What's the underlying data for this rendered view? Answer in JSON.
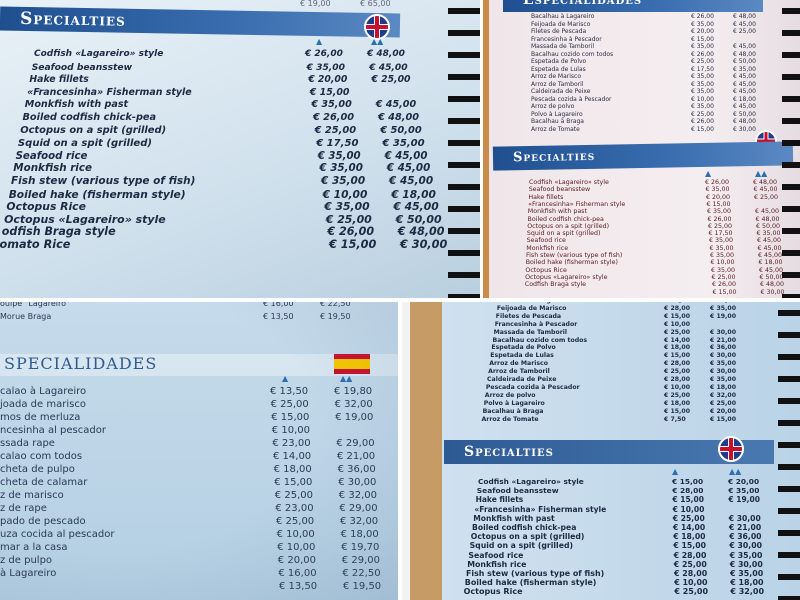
{
  "photos": [
    {
      "title": "Specialties",
      "flag": "uk",
      "top_prices": [
        "€ 19,00",
        "€ 65,00"
      ],
      "rows": [
        [
          "Codfish «Lagareiro» style",
          "€ 26,00",
          "€ 48,00"
        ],
        [
          "Seafood beansstew",
          "€ 35,00",
          "€ 45,00"
        ],
        [
          "Hake fillets",
          "€ 20,00",
          "€ 25,00"
        ],
        [
          "«Francesinha» Fisherman style",
          "€ 15,00",
          ""
        ],
        [
          "Monkfish with past",
          "€ 35,00",
          "€ 45,00"
        ],
        [
          "Boiled codfish chick-pea",
          "€ 26,00",
          "€ 48,00"
        ],
        [
          "Octopus on a spit (grilled)",
          "€ 25,00",
          "€ 50,00"
        ],
        [
          "Squid on a spit (grilled)",
          "€ 17,50",
          "€ 35,00"
        ],
        [
          "Seafood rice",
          "€ 35,00",
          "€ 45,00"
        ],
        [
          "Monkfish rice",
          "€ 35,00",
          "€ 45,00"
        ],
        [
          "Fish stew (various type of fish)",
          "€ 35,00",
          "€ 45,00"
        ],
        [
          "Boiled hake (fisherman style)",
          "€ 10,00",
          "€ 18,00"
        ],
        [
          "Octopus Rice",
          "€ 35,00",
          "€ 45,00"
        ],
        [
          "Octopus «Lagareiro» style",
          "€ 25,00",
          "€ 50,00"
        ],
        [
          "odfish Braga style",
          "€ 26,00",
          "€ 48,00"
        ],
        [
          "omato Rice",
          "€ 15,00",
          "€ 30,00"
        ]
      ]
    },
    {
      "title": "Especialidades",
      "rows": [
        [
          "Bacalhau à Lagareiro",
          "€ 26,00",
          "€ 48,00"
        ],
        [
          "Feijoada de Marisco",
          "€ 35,00",
          "€ 45,00"
        ],
        [
          "Filetes de Pescada",
          "€ 20,00",
          "€ 25,00"
        ],
        [
          "Francesinha à Pescador",
          "€ 15,00",
          ""
        ],
        [
          "Massada de Tamboril",
          "€ 35,00",
          "€ 45,00"
        ],
        [
          "Bacalhau cozido com todos",
          "€ 26,00",
          "€ 48,00"
        ],
        [
          "Espetada de Polvo",
          "€ 25,00",
          "€ 50,00"
        ],
        [
          "Espetada de Lulas",
          "€ 17,50",
          "€ 35,00"
        ],
        [
          "Arroz de Marisco",
          "€ 35,00",
          "€ 45,00"
        ],
        [
          "Arroz de Tamboril",
          "€ 35,00",
          "€ 45,00"
        ],
        [
          "Caldeirada de Peixe",
          "€ 35,00",
          "€ 45,00"
        ],
        [
          "Pescada cozida à Pescador",
          "€ 10,00",
          "€ 18,00"
        ],
        [
          "Arroz de polvo",
          "€ 35,00",
          "€ 45,00"
        ],
        [
          "Polvo à Lagareiro",
          "€ 25,00",
          "€ 50,00"
        ],
        [
          "Bacalhau à Braga",
          "€ 26,00",
          "€ 48,00"
        ],
        [
          "Arroz de Tomate",
          "€ 15,00",
          "€ 30,00"
        ]
      ],
      "title2": "Specialties",
      "flag": "uk",
      "rows2": [
        [
          "Codfish «Lagareiro» style",
          "€ 26,00",
          "€ 48,00"
        ],
        [
          "Seafood beansstew",
          "€ 35,00",
          "€ 45,00"
        ],
        [
          "Hake fillets",
          "€ 20,00",
          "€ 25,00"
        ],
        [
          "«Francesinha» Fisherman style",
          "€ 15,00",
          ""
        ],
        [
          "Monkfish with past",
          "€ 35,00",
          "€ 45,00"
        ],
        [
          "Boiled codfish chick-pea",
          "€ 26,00",
          "€ 48,00"
        ],
        [
          "Octopus on a spit (grilled)",
          "€ 25,00",
          "€ 50,00"
        ],
        [
          "Squid on a spit (grilled)",
          "€ 17,50",
          "€ 35,00"
        ],
        [
          "Seafood rice",
          "€ 35,00",
          "€ 45,00"
        ],
        [
          "Monkfish rice",
          "€ 35,00",
          "€ 45,00"
        ],
        [
          "Fish stew (various type of fish)",
          "€ 35,00",
          "€ 45,00"
        ],
        [
          "Boiled hake (fisherman style)",
          "€ 10,00",
          "€ 18,00"
        ],
        [
          "Octopus Rice",
          "€ 35,00",
          "€ 45,00"
        ],
        [
          "Octopus «Lagareiro» style",
          "€ 25,00",
          "€ 50,00"
        ],
        [
          "Codfish Braga style",
          "€ 26,00",
          "€ 48,00"
        ],
        [
          "",
          "€ 15,00",
          "€ 30,00"
        ]
      ]
    },
    {
      "title": "SPECIALIDADES",
      "flag": "es",
      "top_rows": [
        [
          "oulpe \"Lagareiro\"",
          "€ 16,00",
          "€ 22,50"
        ],
        [
          "Morue Braga",
          "€ 13,50",
          "€ 19,50"
        ]
      ],
      "rows": [
        [
          "calao à Lagareiro",
          "€ 13,50",
          "€ 19,80"
        ],
        [
          "joada de marisco",
          "€ 25,00",
          "€ 32,00"
        ],
        [
          "mos de merluza",
          "€ 15,00",
          "€ 19,00"
        ],
        [
          "ncesinha al pescador",
          "€ 10,00",
          ""
        ],
        [
          "ssada rape",
          "€ 23,00",
          "€ 29,00"
        ],
        [
          "calao com todos",
          "€ 14,00",
          "€ 21,00"
        ],
        [
          "cheta de pulpo",
          "€ 18,00",
          "€ 36,00"
        ],
        [
          "cheta de calamar",
          "€ 15,00",
          "€ 30,00"
        ],
        [
          "z de marisco",
          "€ 25,00",
          "€ 32,00"
        ],
        [
          "z de rape",
          "€ 23,00",
          "€ 29,00"
        ],
        [
          "pado de pescado",
          "€ 25,00",
          "€ 32,00"
        ],
        [
          "uza cocida al pescador",
          "€ 10,00",
          "€ 18,00"
        ],
        [
          "mar a la casa",
          "€ 10,00",
          "€ 19,70"
        ],
        [
          "z de pulpo",
          "€ 20,00",
          "€ 29,00"
        ],
        [
          "à Lagareiro",
          "€ 16,00",
          "€ 22,50"
        ],
        [
          "",
          "€ 13,50",
          "€ 19,50"
        ]
      ]
    },
    {
      "rows": [
        [
          "Bacalhau à Lagareiro",
          "€ 15,00",
          "€ 20,00"
        ],
        [
          "Feijoada de Marisco",
          "€ 28,00",
          "€ 35,00"
        ],
        [
          "Filetes de Pescada",
          "€ 15,00",
          "€ 19,00"
        ],
        [
          "Francesinha à Pescador",
          "€ 10,00",
          ""
        ],
        [
          "Massada de Tamboril",
          "€ 25,00",
          "€ 30,00"
        ],
        [
          "Bacalhau cozido com todos",
          "€ 14,00",
          "€ 21,00"
        ],
        [
          "Espetada de Polvo",
          "€ 18,00",
          "€ 36,00"
        ],
        [
          "Espetada de Lulas",
          "€ 15,00",
          "€ 30,00"
        ],
        [
          "Arroz de Marisco",
          "€ 28,00",
          "€ 35,00"
        ],
        [
          "Arroz de Tamboril",
          "€ 25,00",
          "€ 30,00"
        ],
        [
          "Caldeirada de Peixe",
          "€ 28,00",
          "€ 35,00"
        ],
        [
          "Pescada cozida à Pescador",
          "€ 10,00",
          "€ 18,00"
        ],
        [
          "Arroz de polvo",
          "€ 25,00",
          "€ 32,00"
        ],
        [
          "Polvo à Lagareiro",
          "€ 18,00",
          "€ 25,00"
        ],
        [
          "Bacalhau à Braga",
          "€ 15,00",
          "€ 20,00"
        ],
        [
          "Arroz de Tomate",
          "€ 7,50",
          "€ 15,00"
        ]
      ],
      "title2": "Specialties",
      "flag": "uk",
      "rows2": [
        [
          "Codfish «Lagareiro» style",
          "€ 15,00",
          "€ 20,00"
        ],
        [
          "Seafood beansstew",
          "€ 28,00",
          "€ 35,00"
        ],
        [
          "Hake fillets",
          "€ 15,00",
          "€ 19,00"
        ],
        [
          "«Francesinha» Fisherman style",
          "€ 10,00",
          ""
        ],
        [
          "Monkfish with past",
          "€ 25,00",
          "€ 30,00"
        ],
        [
          "Boiled codfish chick-pea",
          "€ 14,00",
          "€ 21,00"
        ],
        [
          "Octopus on a spit (grilled)",
          "€ 18,00",
          "€ 36,00"
        ],
        [
          "Squid on a spit (grilled)",
          "€ 15,00",
          "€ 30,00"
        ],
        [
          "Seafood rice",
          "€ 28,00",
          "€ 35,00"
        ],
        [
          "Monkfish rice",
          "€ 25,00",
          "€ 30,00"
        ],
        [
          "Fish stew (various type of fish)",
          "€ 28,00",
          "€ 35,00"
        ],
        [
          "Boiled hake (fisherman style)",
          "€ 10,00",
          "€ 18,00"
        ],
        [
          "Octopus Rice",
          "€ 25,00",
          "€ 32,00"
        ]
      ]
    }
  ],
  "colors": {
    "band": "#2a5c9e",
    "text_dark": "#1d2a44",
    "text_red": "#5a1a22"
  }
}
